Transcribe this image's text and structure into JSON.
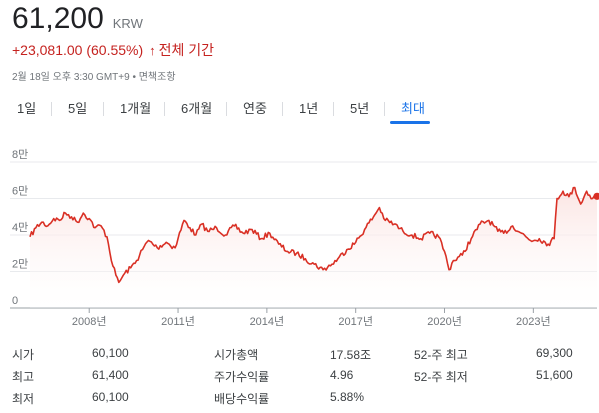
{
  "header": {
    "price": "61,200",
    "currency": "KRW",
    "change": "+23,081.00 (60.55%)",
    "arrow": "↑",
    "period": "전체 기간",
    "meta": "2월 18일 오후 3:30 GMT+9 • 면책조항"
  },
  "tabs": [
    {
      "label": "1일"
    },
    {
      "label": "5일"
    },
    {
      "label": "1개월"
    },
    {
      "label": "6개월"
    },
    {
      "label": "연중"
    },
    {
      "label": "1년"
    },
    {
      "label": "5년"
    },
    {
      "label": "최대"
    }
  ],
  "active_tab": 7,
  "colors": {
    "line": "#d93025",
    "accent": "#1a73e8",
    "negative": "#c5221f"
  },
  "chart_data": {
    "type": "area",
    "ylabels": [
      "8만",
      "6만",
      "4만",
      "2만",
      "0"
    ],
    "yticks": [
      80000,
      60000,
      40000,
      20000,
      0
    ],
    "ylim": [
      0,
      80000
    ],
    "xlabels": [
      "2008년",
      "2011년",
      "2014년",
      "2017년",
      "2020년",
      "2023년"
    ],
    "xticks": [
      2008,
      2011,
      2014,
      2017,
      2020,
      2023
    ],
    "xlim": [
      2006.0,
      2025.15
    ],
    "grid": true,
    "series": [
      {
        "x": [
          2006.0,
          2006.2,
          2006.4,
          2006.6,
          2006.8,
          2007.0,
          2007.2,
          2007.4,
          2007.6,
          2007.8,
          2008.0,
          2008.2,
          2008.4,
          2008.6,
          2008.8,
          2008.9,
          2009.0,
          2009.2,
          2009.4,
          2009.6,
          2009.8,
          2010.0,
          2010.3,
          2010.6,
          2010.9,
          2011.0,
          2011.2,
          2011.4,
          2011.6,
          2011.8,
          2012.0,
          2012.3,
          2012.6,
          2012.9,
          2013.2,
          2013.5,
          2013.8,
          2014.1,
          2014.4,
          2014.7,
          2015.0,
          2015.3,
          2015.6,
          2015.9,
          2016.2,
          2016.4,
          2016.7,
          2017.0,
          2017.3,
          2017.6,
          2017.8,
          2018.0,
          2018.3,
          2018.6,
          2018.9,
          2019.2,
          2019.5,
          2019.8,
          2020.0,
          2020.15,
          2020.3,
          2020.6,
          2020.9,
          2021.2,
          2021.5,
          2021.8,
          2022.0,
          2022.3,
          2022.6,
          2022.9,
          2023.2,
          2023.5,
          2023.7,
          2023.8,
          2024.0,
          2024.2,
          2024.4,
          2024.6,
          2024.8,
          2025.0,
          2025.15
        ],
        "y": [
          39000,
          44000,
          47000,
          45000,
          49000,
          48000,
          52000,
          50000,
          47000,
          52000,
          49000,
          44000,
          45000,
          39000,
          23000,
          18000,
          14000,
          19000,
          22000,
          26000,
          32000,
          37000,
          33000,
          36000,
          33000,
          38000,
          48000,
          44000,
          40000,
          46000,
          42000,
          44000,
          40000,
          45000,
          41000,
          43000,
          38000,
          41000,
          35000,
          31000,
          30000,
          27000,
          24000,
          21000,
          24000,
          27000,
          32000,
          36000,
          43000,
          50000,
          55000,
          48000,
          46000,
          42000,
          40000,
          38000,
          41000,
          39000,
          31000,
          21000,
          26000,
          29000,
          38000,
          46000,
          48000,
          42000,
          41000,
          45000,
          41000,
          37000,
          38000,
          35000,
          38000,
          60000,
          64000,
          61000,
          66000,
          57000,
          64000,
          60000,
          61200
        ]
      }
    ]
  },
  "stats": {
    "col1": [
      {
        "label": "시가",
        "value": "60,100"
      },
      {
        "label": "최고",
        "value": "61,400"
      },
      {
        "label": "최저",
        "value": "60,100"
      }
    ],
    "col2": [
      {
        "label": "시가총액",
        "value": "17.58조"
      },
      {
        "label": "주가수익률",
        "value": "4.96"
      },
      {
        "label": "배당수익률",
        "value": "5.88%"
      }
    ],
    "col3": [
      {
        "label": "52-주 최고",
        "value": "69,300"
      },
      {
        "label": "52-주 최저",
        "value": "51,600"
      }
    ]
  }
}
